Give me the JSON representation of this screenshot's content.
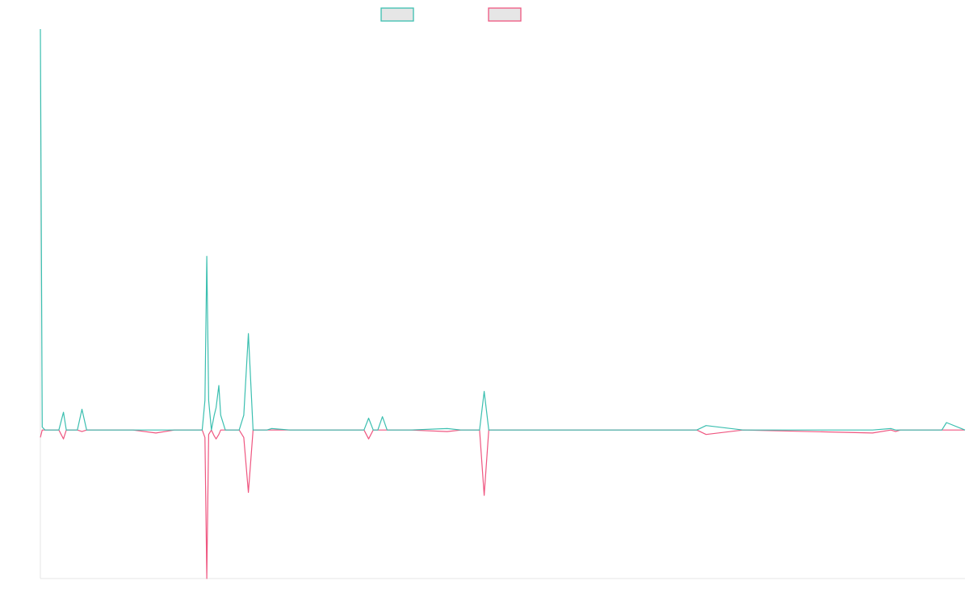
{
  "colors": {
    "series_teal": "#3bbfb0",
    "series_pink": "#ef5680",
    "legend_fill": "#e6e6e6",
    "axis": "#e6e6e6"
  },
  "chart_data": {
    "type": "line",
    "title": "",
    "xlabel": "",
    "ylabel": "",
    "grid": false,
    "legend_position": "top-center",
    "xlim": [
      0,
      1000
    ],
    "ylim": [
      -100,
      270
    ],
    "x": [
      0,
      2,
      5,
      10,
      15,
      20,
      25,
      28,
      30,
      35,
      40,
      45,
      50,
      55,
      60,
      100,
      125,
      145,
      175,
      178,
      180,
      182,
      185,
      188,
      190,
      193,
      195,
      200,
      205,
      210,
      215,
      220,
      225,
      230,
      235,
      240,
      245,
      250,
      270,
      320,
      330,
      335,
      340,
      345,
      350,
      355,
      360,
      365,
      370,
      375,
      380,
      400,
      440,
      455,
      475,
      480,
      485,
      520,
      710,
      720,
      760,
      900,
      920,
      925,
      930,
      970,
      975,
      980,
      1000
    ],
    "series": [
      {
        "values": [
          270,
          2,
          0,
          0,
          0,
          0,
          12,
          0,
          0,
          0,
          0,
          14,
          0,
          0,
          0,
          0,
          0,
          0,
          0,
          20,
          117,
          20,
          0,
          10,
          15,
          30,
          10,
          0,
          0,
          0,
          0,
          10,
          65,
          0,
          0,
          0,
          0,
          1,
          0,
          0,
          0,
          0,
          0,
          0,
          0,
          8,
          0,
          0,
          9,
          0,
          0,
          0,
          1,
          0,
          0,
          26,
          0,
          0,
          0,
          3,
          0,
          0,
          1,
          0,
          0,
          0,
          0,
          5,
          0
        ]
      },
      {
        "values": [
          -5,
          0,
          0,
          0,
          0,
          0,
          -6,
          0,
          0,
          0,
          0,
          -1,
          0,
          0,
          0,
          0,
          -2,
          0,
          0,
          -5,
          -100,
          -3,
          0,
          -4,
          -6,
          -3,
          0,
          0,
          0,
          0,
          0,
          -5,
          -42,
          0,
          0,
          0,
          0,
          0,
          0,
          0,
          0,
          0,
          0,
          0,
          0,
          -6,
          0,
          0,
          0,
          0,
          0,
          0,
          -1,
          0,
          0,
          -44,
          0,
          0,
          0,
          -3,
          0,
          -2,
          0,
          -1,
          0,
          0,
          0,
          0,
          0
        ]
      }
    ]
  }
}
